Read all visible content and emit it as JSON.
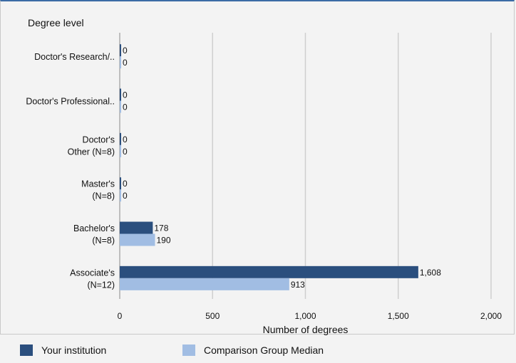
{
  "chart_data": {
    "type": "bar",
    "orientation": "horizontal",
    "title": "Degree level",
    "xlabel": "Number of degrees",
    "ylabel": "",
    "categories": [
      [
        "Doctor's  Research/.."
      ],
      [
        "Doctor's  Professional.."
      ],
      [
        "Doctor's",
        "Other (N=8)"
      ],
      [
        "Master's",
        "(N=8)"
      ],
      [
        "Bachelor's",
        "(N=8)"
      ],
      [
        "Associate's",
        "(N=12)"
      ]
    ],
    "series": [
      {
        "name": "Your institution",
        "values": [
          0,
          0,
          0,
          0,
          178,
          1608
        ],
        "labels": [
          "0",
          "0",
          "0",
          "0",
          "178",
          "1,608"
        ]
      },
      {
        "name": "Comparison Group Median",
        "values": [
          0,
          0,
          0,
          0,
          190,
          913
        ],
        "labels": [
          "0",
          "0",
          "0",
          "0",
          "190",
          "913"
        ]
      }
    ],
    "xlim": [
      0,
      2000
    ],
    "xticks": [
      0,
      500,
      1000,
      1500,
      2000
    ],
    "xtick_labels": [
      "0",
      "500",
      "1,000",
      "1,500",
      "2,000"
    ],
    "grid": true,
    "legend_position": "bottom",
    "colors": {
      "series1": "#2b4f7e",
      "series2": "#a1bde3",
      "grid": "#cfcfcf",
      "axis": "#8a8a8a"
    }
  },
  "legend": {
    "items": [
      {
        "label": "Your institution",
        "color": "#2b4f7e"
      },
      {
        "label": "Comparison Group Median",
        "color": "#a1bde3"
      }
    ]
  }
}
